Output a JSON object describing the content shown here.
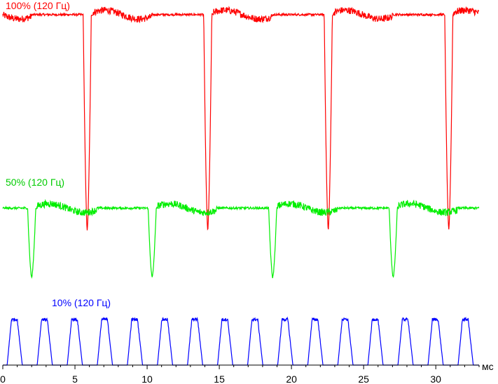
{
  "chart_data": {
    "type": "line",
    "xlabel": "",
    "x_unit": "мс",
    "xlim": [
      0,
      33
    ],
    "x_ticks": [
      0,
      5,
      10,
      15,
      20,
      25,
      30
    ],
    "grid": false,
    "legend": "none",
    "series": [
      {
        "name": "100% (120 Гц)",
        "color": "#ff0000",
        "period_ms": 8.333,
        "dip_times_ms": [
          5.85,
          14.2,
          22.55,
          30.9
        ],
        "baseline_level": 0.96,
        "dip_level": 0.37
      },
      {
        "name": "50% (120 Гц)",
        "color": "#00ee00",
        "period_ms": 8.333,
        "dip_times_ms": [
          2.0,
          10.35,
          18.7,
          27.05
        ],
        "baseline_level": 0.43,
        "dip_level": 0.24
      },
      {
        "name": "10% (120 Гц)",
        "color": "#0000ff",
        "period_ms": 2.083,
        "pulse_start_ms": 0.3,
        "pulse_count": 16,
        "baseline_level": 0.0,
        "peak_level": 0.125
      }
    ]
  }
}
